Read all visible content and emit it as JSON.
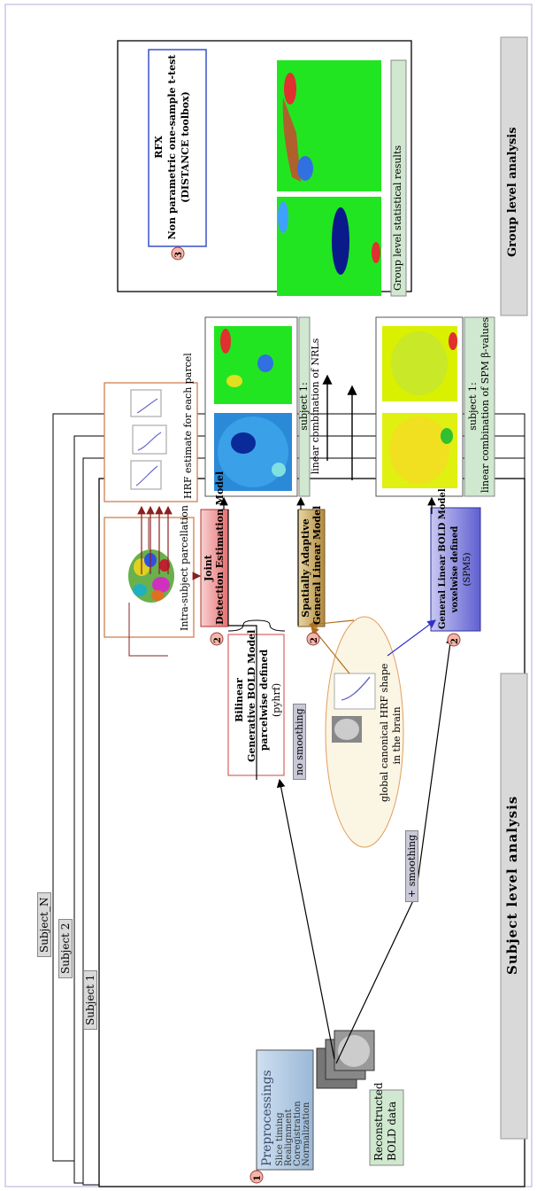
{
  "subjects": {
    "n": "Subject_N",
    "two": "Subject 2",
    "one": "Subject 1"
  },
  "preproc": {
    "title": "Preprocessings",
    "steps": [
      "Slice timing",
      "Realignment",
      "Coregistration",
      "Normalization"
    ]
  },
  "bold": {
    "line1": "Reconstructed",
    "line2": "BOLD data"
  },
  "steps": {
    "one": "1",
    "two": "2",
    "three": "3"
  },
  "labels": {
    "no_smoothing": "no smoothing",
    "smoothing": "+ smoothing"
  },
  "bilinear": {
    "l1": "Bilinear",
    "l2": "Generative BOLD Model",
    "l3": "parcelwise defined",
    "l4": "(pyhrf)"
  },
  "canonical": {
    "l1": "global canonical HRF shape",
    "l2": "in the brain"
  },
  "parcellation": {
    "label": "Intra-subject parcellation"
  },
  "jde": {
    "l1": "Joint",
    "l2": "Detection Estimation Model"
  },
  "saglm": {
    "l1": "Spatially Adaptive",
    "l2": "General Linear Model"
  },
  "glm": {
    "l1": "General Linear BOLD Model",
    "l2": "voxelwise defined",
    "l3": "(SPM5)"
  },
  "hrf": {
    "label": "HRF estimate for each parcel"
  },
  "nrl": {
    "l1": "subject 1:",
    "l2": "linear combination of NRLs"
  },
  "spm": {
    "l1": "subject 1:",
    "l2": "linear combination of SPM β-values"
  },
  "rfx": {
    "l1": "RFX",
    "l2": "Non parametric one-sample t-test",
    "l3": "(DISTANCE toolbox)"
  },
  "group_results": {
    "label": "Group level statistical results"
  },
  "footer": {
    "subject_level": "Subject level analysis",
    "group_level": "Group level analysis"
  },
  "colors": {
    "jde": "#f4a3a3",
    "saglm": "#c8a96a",
    "glm": "#8a8ad8",
    "rfx_border": "#3a50c8",
    "green_label": "#cfe8cf",
    "step_circle": "#f3b6a8",
    "map_green": "#22e522"
  }
}
